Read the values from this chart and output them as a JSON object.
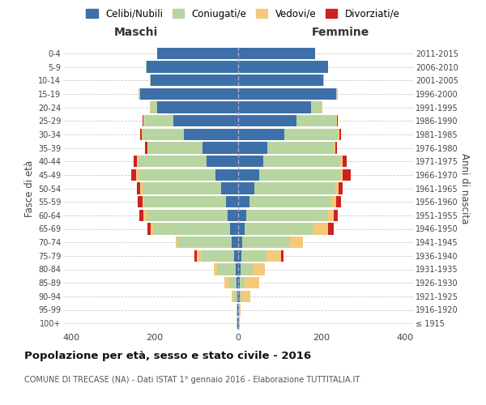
{
  "age_groups": [
    "100+",
    "95-99",
    "90-94",
    "85-89",
    "80-84",
    "75-79",
    "70-74",
    "65-69",
    "60-64",
    "55-59",
    "50-54",
    "45-49",
    "40-44",
    "35-39",
    "30-34",
    "25-29",
    "20-24",
    "15-19",
    "10-14",
    "5-9",
    "0-4"
  ],
  "birth_years": [
    "≤ 1915",
    "1916-1920",
    "1921-1925",
    "1926-1930",
    "1931-1935",
    "1936-1940",
    "1941-1945",
    "1946-1950",
    "1951-1955",
    "1956-1960",
    "1961-1965",
    "1966-1970",
    "1971-1975",
    "1976-1980",
    "1981-1985",
    "1986-1990",
    "1991-1995",
    "1996-2000",
    "2001-2005",
    "2006-2010",
    "2011-2015"
  ],
  "males": {
    "celibi": [
      2,
      1,
      2,
      3,
      5,
      10,
      15,
      20,
      25,
      30,
      40,
      55,
      75,
      85,
      130,
      155,
      195,
      235,
      210,
      220,
      195
    ],
    "coniugati": [
      1,
      2,
      8,
      18,
      45,
      80,
      130,
      185,
      195,
      195,
      190,
      185,
      165,
      130,
      100,
      70,
      15,
      5,
      1,
      1,
      0
    ],
    "vedovi": [
      0,
      0,
      5,
      12,
      8,
      10,
      5,
      5,
      8,
      5,
      5,
      5,
      3,
      3,
      2,
      2,
      2,
      0,
      0,
      0,
      0
    ],
    "divorziati": [
      0,
      0,
      0,
      0,
      0,
      5,
      0,
      8,
      10,
      12,
      8,
      12,
      8,
      5,
      3,
      2,
      0,
      0,
      0,
      0,
      0
    ]
  },
  "females": {
    "nubili": [
      2,
      1,
      3,
      4,
      5,
      8,
      10,
      15,
      20,
      28,
      38,
      50,
      60,
      70,
      110,
      140,
      175,
      235,
      205,
      215,
      185
    ],
    "coniugate": [
      1,
      2,
      6,
      12,
      30,
      60,
      115,
      165,
      195,
      195,
      195,
      195,
      185,
      160,
      130,
      95,
      25,
      5,
      2,
      1,
      0
    ],
    "vedove": [
      1,
      2,
      20,
      35,
      30,
      35,
      30,
      35,
      15,
      12,
      8,
      5,
      5,
      3,
      3,
      2,
      2,
      0,
      0,
      0,
      0
    ],
    "divorziate": [
      0,
      0,
      0,
      0,
      0,
      5,
      0,
      15,
      10,
      12,
      10,
      20,
      10,
      5,
      3,
      2,
      0,
      0,
      0,
      0,
      0
    ]
  },
  "colors": {
    "celibi_nubili": "#3d6fa8",
    "coniugati": "#b8d4a0",
    "vedovi": "#f5c97a",
    "divorziati": "#cc2222"
  },
  "xlim": 420,
  "title": "Popolazione per età, sesso e stato civile - 2016",
  "subtitle": "COMUNE DI TRECASE (NA) - Dati ISTAT 1° gennaio 2016 - Elaborazione TUTTITALIA.IT",
  "ylabel_left": "Fasce di età",
  "ylabel_right": "Anni di nascita",
  "xlabel_left": "Maschi",
  "xlabel_right": "Femmine",
  "legend_labels": [
    "Celibi/Nubili",
    "Coniugati/e",
    "Vedovi/e",
    "Divorziati/e"
  ],
  "bg_color": "#ffffff",
  "grid_color": "#cccccc"
}
